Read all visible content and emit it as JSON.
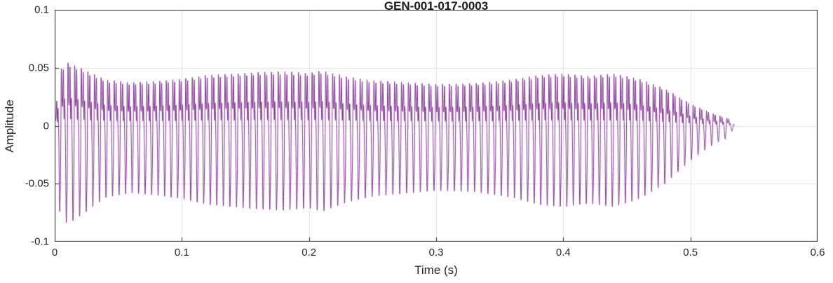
{
  "chart_data": {
    "type": "line",
    "title": "GEN-001-017-0003",
    "xlabel": "Time (s)",
    "ylabel": "Amplitude",
    "xlim": [
      0,
      0.6
    ],
    "ylim": [
      -0.1,
      0.1
    ],
    "xticks": [
      0,
      0.1,
      0.2,
      0.3,
      0.4,
      0.5,
      0.6
    ],
    "xtick_labels": [
      "0",
      "0.1",
      "0.2",
      "0.3",
      "0.4",
      "0.5",
      "0.6"
    ],
    "yticks": [
      -0.1,
      -0.05,
      0,
      0.05,
      0.1
    ],
    "ytick_labels": [
      "-0.1",
      "-0.05",
      "0",
      "0.05",
      "0.1"
    ],
    "grid": true,
    "line_color": "#7E2F8E",
    "axis_color": "#262626",
    "grid_color": "#e0e0e0",
    "signal": {
      "description": "audio waveform, oscillatory signal from 0 s to ~0.535 s with varying amplitude envelope",
      "fundamental_hz": 190,
      "vibrato": [
        3,
        0.03
      ],
      "harmonics": [
        [
          1,
          1.0,
          0.0
        ],
        [
          2,
          0.55,
          1.3
        ],
        [
          3,
          0.35,
          2.2
        ],
        [
          4,
          0.2,
          0.7
        ],
        [
          6,
          0.12,
          1.9
        ]
      ],
      "end_time_s": 0.535,
      "envelope": {
        "t": [
          0,
          0.004,
          0.01,
          0.02,
          0.04,
          0.06,
          0.08,
          0.1,
          0.12,
          0.14,
          0.16,
          0.18,
          0.2,
          0.21,
          0.23,
          0.25,
          0.27,
          0.3,
          0.33,
          0.36,
          0.38,
          0.4,
          0.42,
          0.44,
          0.46,
          0.48,
          0.49,
          0.5,
          0.51,
          0.52,
          0.53,
          0.535
        ],
        "a": [
          0.01,
          0.075,
          0.085,
          0.078,
          0.062,
          0.058,
          0.06,
          0.063,
          0.068,
          0.07,
          0.072,
          0.073,
          0.071,
          0.074,
          0.066,
          0.061,
          0.059,
          0.056,
          0.057,
          0.062,
          0.068,
          0.07,
          0.067,
          0.07,
          0.063,
          0.05,
          0.04,
          0.03,
          0.022,
          0.015,
          0.01,
          0.0
        ]
      }
    }
  }
}
